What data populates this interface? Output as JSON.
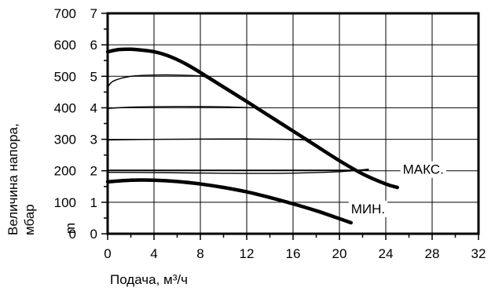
{
  "chart_data": {
    "type": "line",
    "xlabel": "Подача, м³/ч",
    "ylabel_outer": "Величина напора,",
    "ylabel_outer_unit": "мбар",
    "ylabel_inner_unit": "m",
    "x_ticks": [
      "0",
      "4",
      "8",
      "12",
      "16",
      "20",
      "24",
      "28",
      "32"
    ],
    "y_ticks_mbar": [
      "0",
      "100",
      "200",
      "300",
      "400",
      "500",
      "600",
      "700"
    ],
    "y_ticks_m": [
      "0",
      "1",
      "2",
      "3",
      "4",
      "5",
      "6",
      "7"
    ],
    "xlim": [
      0,
      32
    ],
    "ylim_mbar": [
      0,
      700
    ],
    "grid": true,
    "annotations": [
      {
        "text": "МАКС.",
        "x": 25.6,
        "y": 205
      },
      {
        "text": "МИН.",
        "x": 21.0,
        "y": 80
      }
    ],
    "series": [
      {
        "role": "max",
        "bold": true,
        "x": [
          0,
          1,
          2,
          3,
          4,
          5,
          6,
          7,
          8,
          10,
          12,
          14,
          16,
          18,
          20,
          22,
          24,
          25
        ],
        "y": [
          578,
          585,
          586,
          583,
          578,
          568,
          553,
          534,
          512,
          466,
          420,
          373,
          326,
          279,
          232,
          190,
          158,
          147
        ]
      },
      {
        "role": "min",
        "bold": true,
        "x": [
          0,
          2,
          4,
          6,
          8,
          10,
          12,
          14,
          16,
          18,
          20,
          21
        ],
        "y": [
          165,
          170,
          170,
          166,
          158,
          147,
          133,
          115,
          95,
          73,
          48,
          35
        ]
      },
      {
        "role": "stage5",
        "bold": false,
        "x": [
          0,
          0.5,
          2,
          4,
          6,
          8,
          8.5
        ],
        "y": [
          465,
          485,
          500,
          504,
          504,
          501,
          497
        ]
      },
      {
        "role": "stage4",
        "bold": false,
        "x": [
          0,
          2,
          6,
          10,
          12.5
        ],
        "y": [
          398,
          402,
          404,
          403,
          400
        ]
      },
      {
        "role": "stage3",
        "bold": false,
        "x": [
          0,
          5,
          10,
          15,
          17.5
        ],
        "y": [
          298,
          300,
          301,
          300,
          298
        ]
      },
      {
        "role": "stage2",
        "bold": false,
        "x": [
          0,
          5,
          10,
          15,
          20,
          22.5
        ],
        "y": [
          195,
          194,
          192,
          192,
          197,
          205
        ]
      },
      {
        "role": "stage2_upper",
        "bold": false,
        "x": [
          0,
          22.5
        ],
        "y": [
          202,
          202
        ]
      }
    ]
  }
}
